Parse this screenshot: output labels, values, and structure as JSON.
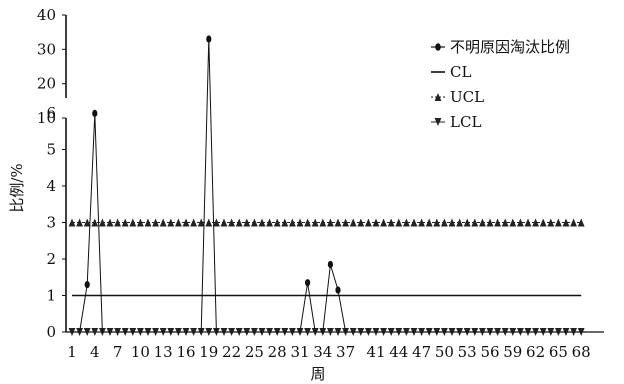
{
  "chart_data": {
    "type": "line",
    "xlabel": "周",
    "ylabel": "比例/%",
    "x_tick_labels": [
      "1",
      "4",
      "7",
      "10",
      "13",
      "16",
      "19",
      "22",
      "25",
      "28",
      "31",
      "34",
      "37",
      "41",
      "44",
      "47",
      "50",
      "53",
      "56",
      "59",
      "62",
      "65",
      "68"
    ],
    "y_tick_labels": [
      "0",
      "1",
      "2",
      "3",
      "4",
      "5",
      "6",
      "10",
      "20",
      "30",
      "40"
    ],
    "legend_position": "top-right",
    "grid": false,
    "x": [
      1,
      2,
      3,
      4,
      5,
      6,
      7,
      8,
      9,
      10,
      11,
      12,
      13,
      14,
      15,
      16,
      17,
      18,
      19,
      20,
      21,
      22,
      23,
      24,
      25,
      26,
      27,
      28,
      29,
      30,
      31,
      32,
      33,
      34,
      35,
      36,
      37,
      38,
      39,
      40,
      41,
      42,
      43,
      44,
      45,
      46,
      47,
      48,
      49,
      50,
      51,
      52,
      53,
      54,
      55,
      56,
      57,
      58,
      59,
      60,
      61,
      62,
      63,
      64,
      65,
      66,
      67,
      68
    ],
    "series": [
      {
        "name": "不明原因淘汰比例",
        "values": [
          0,
          0,
          1.3,
          6.3,
          0,
          0,
          0,
          0,
          0,
          0,
          0,
          0,
          0,
          0,
          0,
          0,
          0,
          0,
          33,
          0,
          0,
          0,
          0,
          0,
          0,
          0,
          0,
          0,
          0,
          0,
          0,
          1.35,
          0,
          0,
          1.85,
          1.15,
          0,
          0,
          0,
          0,
          0,
          0,
          0,
          0,
          0,
          0,
          0,
          0,
          0,
          0,
          0,
          0,
          0,
          0,
          0,
          0,
          0,
          0,
          0,
          0,
          0,
          0,
          0,
          0,
          0,
          0,
          0,
          0
        ]
      },
      {
        "name": "CL",
        "constant": 1.0
      },
      {
        "name": "UCL",
        "constant": 3.0
      },
      {
        "name": "LCL",
        "constant": 0
      }
    ]
  }
}
